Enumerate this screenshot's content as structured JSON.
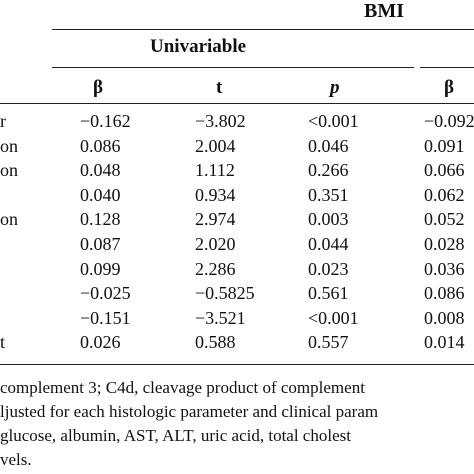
{
  "header": {
    "group_label": "BMI",
    "subgroup_label": "Univariable",
    "columns": [
      "β",
      "t",
      "p",
      "β"
    ]
  },
  "rows": [
    {
      "label": "r",
      "beta": "−0.162",
      "t": "−3.802",
      "p": "<0.001",
      "beta2": "−0.092"
    },
    {
      "label": "on",
      "beta": "0.086",
      "t": "2.004",
      "p": "0.046",
      "beta2": "0.091"
    },
    {
      "label": "on",
      "beta": "0.048",
      "t": "1.112",
      "p": "0.266",
      "beta2": "0.066"
    },
    {
      "label": "",
      "beta": "0.040",
      "t": "0.934",
      "p": "0.351",
      "beta2": "0.062"
    },
    {
      "label": "on",
      "beta": "0.128",
      "t": "2.974",
      "p": "0.003",
      "beta2": "0.052"
    },
    {
      "label": "",
      "beta": "0.087",
      "t": "2.020",
      "p": "0.044",
      "beta2": "0.028"
    },
    {
      "label": "",
      "beta": "0.099",
      "t": "2.286",
      "p": "0.023",
      "beta2": "0.036"
    },
    {
      "label": "",
      "beta": "−0.025",
      "t": "−0.5825",
      "p": "0.561",
      "beta2": "0.086"
    },
    {
      "label": "",
      "beta": "−0.151",
      "t": "−3.521",
      "p": "<0.001",
      "beta2": "0.008"
    },
    {
      "label": "t",
      "beta": "0.026",
      "t": "0.588",
      "p": "0.557",
      "beta2": "0.014"
    }
  ],
  "footnote": {
    "line1": "complement 3; C4d, cleavage product of complement",
    "line2": "ljusted for each histologic parameter and clinical param",
    "line3": " glucose, albumin, AST, ALT, uric acid, total cholest",
    "line4": "vels."
  }
}
